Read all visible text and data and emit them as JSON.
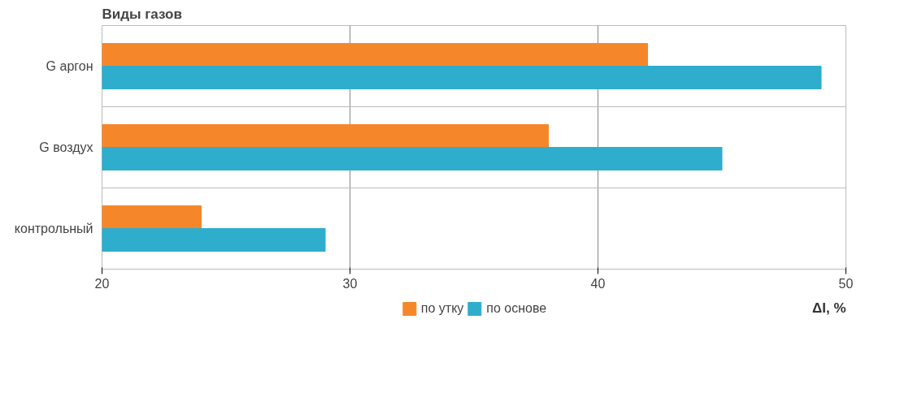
{
  "chart_data": {
    "type": "bar",
    "orientation": "horizontal",
    "ylabel": "Виды газов",
    "xlabel": "ΔI, %",
    "categories": [
      "G аргон",
      "G воздух",
      "контрольный"
    ],
    "series": [
      {
        "name": "по утку",
        "color": "#f5872a",
        "values": [
          42,
          38,
          24
        ]
      },
      {
        "name": "по основе",
        "color": "#2fadcc",
        "values": [
          49,
          45,
          29
        ]
      }
    ],
    "xlim": [
      20,
      50
    ],
    "xticks": [
      20,
      30,
      40,
      50
    ],
    "grid": true,
    "legend": "bottom"
  }
}
